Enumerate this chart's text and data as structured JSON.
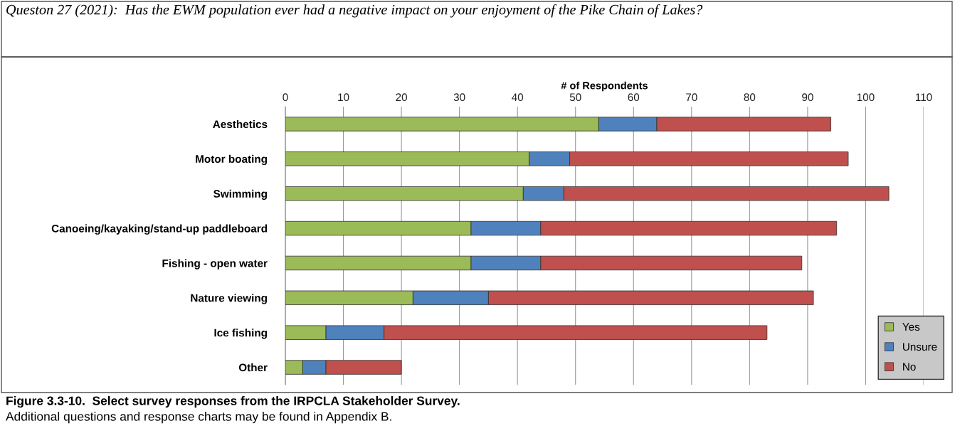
{
  "chart_data": {
    "type": "bar",
    "orientation": "horizontal",
    "stacked": true,
    "title": "Queston 27 (2021):  Has the EWM population ever had a negative impact on your enjoyment of the Pike Chain of Lakes?",
    "xlabel": "# of Respondents",
    "categories": [
      "Aesthetics",
      "Motor boating",
      "Swimming",
      "Canoeing/kayaking/stand-up paddleboard",
      "Fishing - open water",
      "Nature viewing",
      "Ice fishing",
      "Other"
    ],
    "series": [
      {
        "name": "Yes",
        "color": "#9bbb59",
        "values": [
          54,
          42,
          41,
          32,
          32,
          22,
          7,
          3
        ]
      },
      {
        "name": "Unsure",
        "color": "#4f81bd",
        "values": [
          10,
          7,
          7,
          12,
          12,
          13,
          10,
          4
        ]
      },
      {
        "name": "No",
        "color": "#c0504d",
        "values": [
          30,
          48,
          56,
          51,
          45,
          56,
          66,
          13
        ]
      }
    ],
    "xlim": [
      0,
      110
    ],
    "xticks": [
      0,
      10,
      20,
      30,
      40,
      50,
      60,
      70,
      80,
      90,
      100,
      110
    ],
    "grid": "x",
    "legend": "bottom right",
    "annotations": [
      "Figure 3.3-10.  Select survey responses from the IRPCLA Stakeholder Survey.",
      "Additional questions and response charts may be found in Appendix B."
    ]
  }
}
